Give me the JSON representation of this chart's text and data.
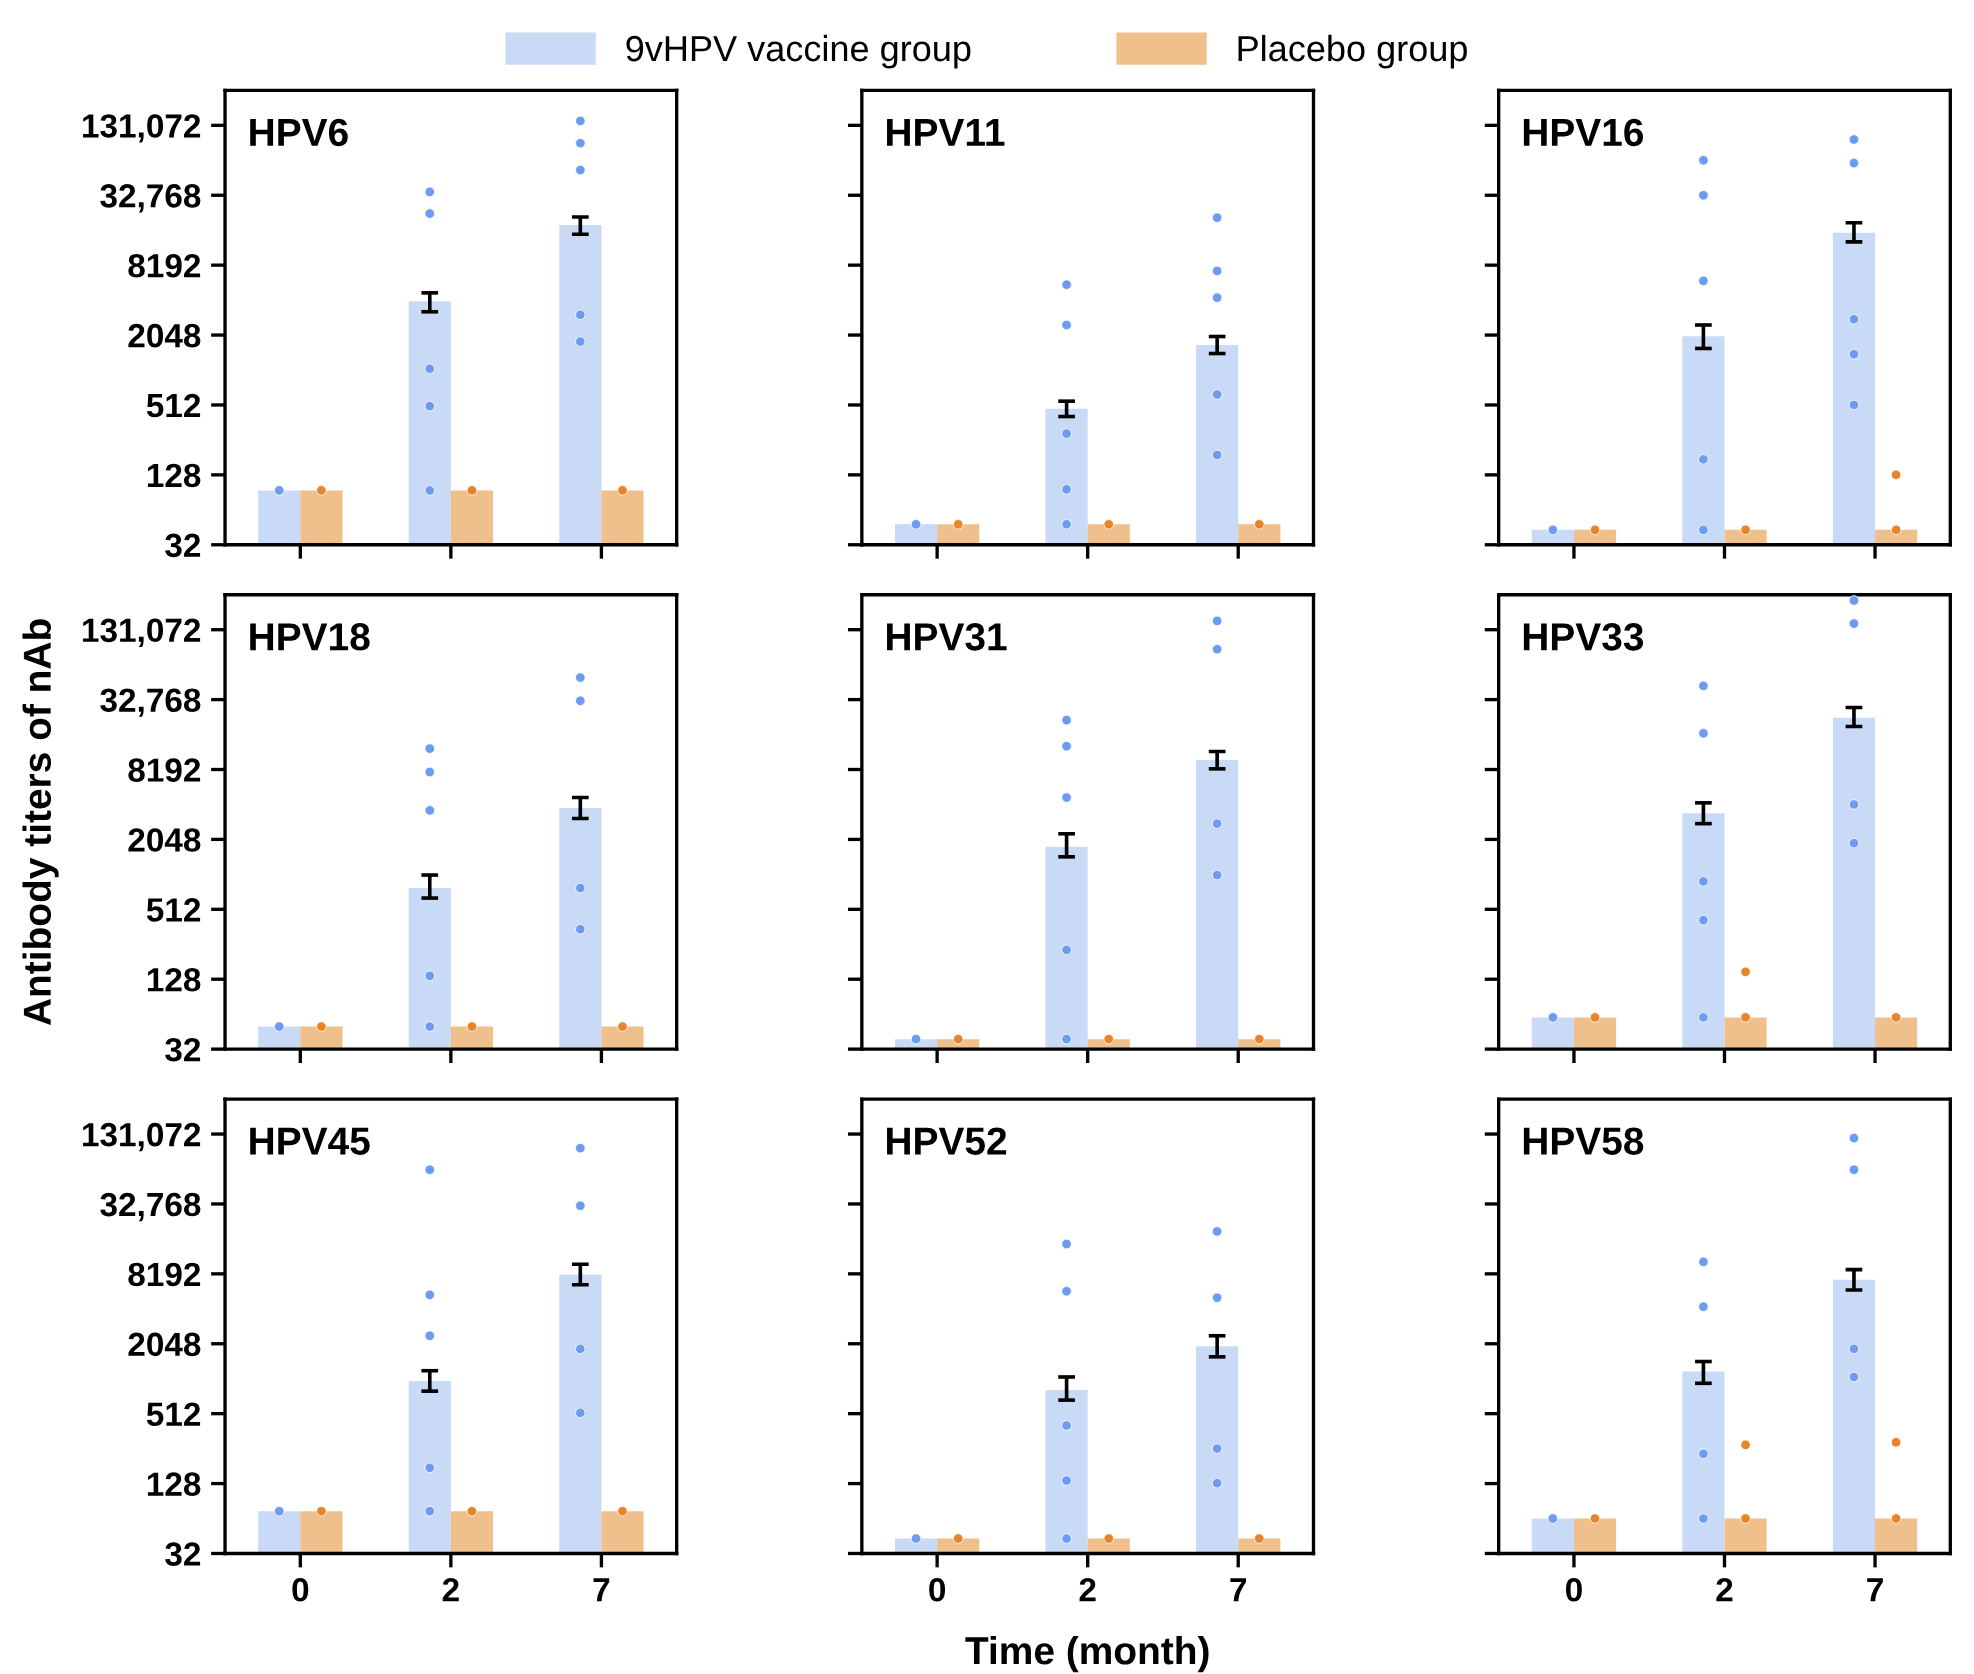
{
  "chart_data": [
    {
      "type": "bar",
      "title": "HPV6",
      "categories": [
        "0",
        "2",
        "7"
      ],
      "ylim": [
        32,
        262144
      ],
      "log": "y",
      "grid": false,
      "legend": "top",
      "tick_labels": "y",
      "yticks": [
        32,
        128,
        512,
        2048,
        8192,
        {
          "value": 32768,
          "label": "32,768"
        },
        {
          "value": 131072,
          "label": "131,072"
        }
      ],
      "series": [
        {
          "name": "9vHPV vaccine group",
          "color": "#c9daf6",
          "values": [
            94,
            4000,
            18200
          ],
          "errors": [
            null,
            [
              3250,
              4730
            ],
            [
              15100,
              21300
            ]
          ]
        },
        {
          "name": "Placebo group",
          "color": "#f0c08c",
          "values": [
            94,
            94,
            94
          ]
        },
        {
          "type": "scatter",
          "color": "#6d9bf1",
          "marker": "circle",
          "x": [
            "0",
            "2",
            "2",
            "2",
            "2",
            "2",
            "7",
            "7",
            "7",
            "7",
            "7"
          ],
          "values": [
            94,
            94,
            500,
            1050,
            22800,
            35000,
            1800,
            3060,
            54000,
            92000,
            143000
          ]
        },
        {
          "type": "scatter",
          "color": "#e8842a",
          "marker": "circle",
          "x": [
            "0",
            "2",
            "7"
          ],
          "values": [
            94,
            94,
            94
          ]
        }
      ]
    },
    {
      "type": "bar",
      "title": "HPV11",
      "categories": [
        "0",
        "2",
        "7"
      ],
      "ylim": [
        32,
        262144
      ],
      "log": "y",
      "grid": false,
      "tick_labels": false,
      "yticks": [
        {
          "value": 32,
          "label": null
        },
        {
          "value": 128,
          "label": null
        },
        {
          "value": 512,
          "label": null
        },
        {
          "value": 2048,
          "label": null
        },
        {
          "value": 8192,
          "label": null
        },
        {
          "value": 32768,
          "label": null
        },
        {
          "value": 131072,
          "label": null
        }
      ],
      "series": [
        {
          "color": "#c9daf6",
          "values": [
            48,
            474,
            1680
          ],
          "errors": [
            null,
            [
              407,
              552
            ],
            [
              1420,
              1990
            ]
          ]
        },
        {
          "color": "#f0c08c",
          "values": [
            48,
            48,
            48
          ]
        },
        {
          "type": "scatter",
          "color": "#6d9bf1",
          "marker": "circle",
          "x": [
            "0",
            "2",
            "2",
            "2",
            "2",
            "2",
            "7",
            "7",
            "7",
            "7",
            "7"
          ],
          "values": [
            48,
            48,
            96,
            290,
            2500,
            5560,
            190,
            630,
            4300,
            7300,
            21000
          ]
        },
        {
          "type": "scatter",
          "color": "#e8842a",
          "marker": "circle",
          "x": [
            "0",
            "2",
            "7"
          ],
          "values": [
            48,
            48,
            48
          ]
        }
      ]
    },
    {
      "type": "bar",
      "title": "HPV16",
      "categories": [
        "0",
        "2",
        "7"
      ],
      "ylim": [
        32,
        262144
      ],
      "log": "y",
      "grid": false,
      "tick_labels": false,
      "yticks": [
        {
          "value": 32,
          "label": null
        },
        {
          "value": 128,
          "label": null
        },
        {
          "value": 512,
          "label": null
        },
        {
          "value": 2048,
          "label": null
        },
        {
          "value": 8192,
          "label": null
        },
        {
          "value": 32768,
          "label": null
        },
        {
          "value": 131072,
          "label": null
        }
      ],
      "series": [
        {
          "color": "#c9daf6",
          "values": [
            43,
            2000,
            15600
          ],
          "errors": [
            null,
            [
              1570,
              2500
            ],
            [
              13000,
              19000
            ]
          ]
        },
        {
          "color": "#f0c08c",
          "values": [
            43,
            43,
            43
          ]
        },
        {
          "type": "scatter",
          "color": "#6d9bf1",
          "marker": "circle",
          "x": [
            "0",
            "2",
            "2",
            "2",
            "2",
            "2",
            "7",
            "7",
            "7",
            "7",
            "7"
          ],
          "values": [
            43,
            43,
            174,
            6000,
            32768,
            65536,
            512,
            1400,
            2800,
            62000,
            99000
          ]
        },
        {
          "type": "scatter",
          "color": "#e8842a",
          "marker": "circle",
          "x": [
            "0",
            "2",
            "7",
            "7"
          ],
          "values": [
            43,
            43,
            43,
            128
          ]
        }
      ]
    },
    {
      "type": "bar",
      "title": "HPV18",
      "ylabel": "Antibody titers of nAb",
      "categories": [
        "0",
        "2",
        "7"
      ],
      "ylim": [
        32,
        262144
      ],
      "log": "y",
      "grid": false,
      "tick_labels": "y",
      "yticks": [
        32,
        128,
        512,
        2048,
        8192,
        {
          "value": 32768,
          "label": "32,768"
        },
        {
          "value": 131072,
          "label": "131,072"
        }
      ],
      "series": [
        {
          "color": "#c9daf6",
          "values": [
            50,
            780,
            3820
          ],
          "errors": [
            null,
            [
              640,
              1010
            ],
            [
              3100,
              4700
            ]
          ]
        },
        {
          "color": "#f0c08c",
          "values": [
            50,
            50,
            50
          ]
        },
        {
          "type": "scatter",
          "color": "#6d9bf1",
          "marker": "circle",
          "x": [
            "0",
            "2",
            "2",
            "2",
            "2",
            "2",
            "7",
            "7",
            "7",
            "7"
          ],
          "values": [
            50,
            50,
            137,
            3640,
            7800,
            12400,
            345,
            780,
            32000,
            50700
          ]
        },
        {
          "type": "scatter",
          "color": "#e8842a",
          "marker": "circle",
          "x": [
            "0",
            "2",
            "7"
          ],
          "values": [
            50,
            50,
            50
          ]
        }
      ]
    },
    {
      "type": "bar",
      "title": "HPV31",
      "categories": [
        "0",
        "2",
        "7"
      ],
      "ylim": [
        32,
        262144
      ],
      "log": "y",
      "grid": false,
      "tick_labels": false,
      "yticks": [
        {
          "value": 32,
          "label": null
        },
        {
          "value": 128,
          "label": null
        },
        {
          "value": 512,
          "label": null
        },
        {
          "value": 2048,
          "label": null
        },
        {
          "value": 8192,
          "label": null
        },
        {
          "value": 32768,
          "label": null
        },
        {
          "value": 131072,
          "label": null
        }
      ],
      "series": [
        {
          "color": "#c9daf6",
          "values": [
            39,
            1770,
            9900
          ],
          "errors": [
            null,
            [
              1450,
              2290
            ],
            [
              8300,
              11700
            ]
          ]
        },
        {
          "color": "#f0c08c",
          "values": [
            39,
            39,
            39
          ]
        },
        {
          "type": "scatter",
          "color": "#6d9bf1",
          "marker": "circle",
          "x": [
            "0",
            "2",
            "2",
            "2",
            "2",
            "2",
            "7",
            "7",
            "7",
            "7"
          ],
          "values": [
            39,
            39,
            229,
            4700,
            13000,
            21800,
            1010,
            2800,
            89000,
            156000
          ]
        },
        {
          "type": "scatter",
          "color": "#e8842a",
          "marker": "circle",
          "x": [
            "0",
            "2",
            "7"
          ],
          "values": [
            39,
            39,
            39
          ]
        }
      ]
    },
    {
      "type": "bar",
      "title": "HPV33",
      "categories": [
        "0",
        "2",
        "7"
      ],
      "ylim": [
        32,
        262144
      ],
      "log": "y",
      "grid": false,
      "tick_labels": false,
      "yticks": [
        {
          "value": 32,
          "label": null
        },
        {
          "value": 128,
          "label": null
        },
        {
          "value": 512,
          "label": null
        },
        {
          "value": 2048,
          "label": null
        },
        {
          "value": 8192,
          "label": null
        },
        {
          "value": 32768,
          "label": null
        },
        {
          "value": 131072,
          "label": null
        }
      ],
      "series": [
        {
          "color": "#c9daf6",
          "values": [
            60,
            3440,
            22900
          ],
          "errors": [
            null,
            [
              2800,
              4230
            ],
            [
              19200,
              28000
            ]
          ]
        },
        {
          "color": "#f0c08c",
          "values": [
            60,
            60,
            60
          ]
        },
        {
          "type": "scatter",
          "color": "#6d9bf1",
          "marker": "circle",
          "x": [
            "0",
            "2",
            "2",
            "2",
            "2",
            "2",
            "7",
            "7",
            "7",
            "7"
          ],
          "values": [
            60,
            60,
            413,
            890,
            16800,
            43000,
            1900,
            4096,
            148000,
            234000
          ]
        },
        {
          "type": "scatter",
          "color": "#e8842a",
          "marker": "circle",
          "x": [
            "0",
            "2",
            "2",
            "7"
          ],
          "values": [
            60,
            60,
            148,
            60
          ]
        }
      ]
    },
    {
      "type": "bar",
      "title": "HPV45",
      "categories": [
        "0",
        "2",
        "7"
      ],
      "ylim": [
        32,
        262144
      ],
      "log": "y",
      "grid": false,
      "yticks": [
        32,
        128,
        512,
        2048,
        8192,
        {
          "value": 32768,
          "label": "32,768"
        },
        {
          "value": 131072,
          "label": "131,072"
        }
      ],
      "series": [
        {
          "color": "#c9daf6",
          "values": [
            74,
            980,
            8080
          ],
          "errors": [
            null,
            [
              800,
              1200
            ],
            [
              6600,
              9900
            ]
          ]
        },
        {
          "color": "#f0c08c",
          "values": [
            74,
            74,
            74
          ]
        },
        {
          "type": "scatter",
          "color": "#6d9bf1",
          "marker": "circle",
          "x": [
            "0",
            "2",
            "2",
            "2",
            "2",
            "2",
            "7",
            "7",
            "7",
            "7"
          ],
          "values": [
            74,
            74,
            175,
            2400,
            5400,
            64600,
            520,
            1850,
            31600,
            99000
          ]
        },
        {
          "type": "scatter",
          "color": "#e8842a",
          "marker": "circle",
          "x": [
            "0",
            "2",
            "7"
          ],
          "values": [
            74,
            74,
            74
          ]
        }
      ]
    },
    {
      "type": "bar",
      "title": "HPV52",
      "xlabel": "Time (month)",
      "categories": [
        "0",
        "2",
        "7"
      ],
      "ylim": [
        32,
        262144
      ],
      "log": "y",
      "grid": false,
      "tick_labels": "x",
      "yticks": [
        {
          "value": 32,
          "label": null
        },
        {
          "value": 128,
          "label": null
        },
        {
          "value": 512,
          "label": null
        },
        {
          "value": 2048,
          "label": null
        },
        {
          "value": 8192,
          "label": null
        },
        {
          "value": 32768,
          "label": null
        },
        {
          "value": 131072,
          "label": null
        }
      ],
      "series": [
        {
          "color": "#c9daf6",
          "values": [
            43,
            820,
            1950
          ],
          "errors": [
            null,
            [
              670,
              1060
            ],
            [
              1580,
              2400
            ]
          ]
        },
        {
          "color": "#f0c08c",
          "values": [
            43,
            43,
            43
          ]
        },
        {
          "type": "scatter",
          "color": "#6d9bf1",
          "marker": "circle",
          "x": [
            "0",
            "2",
            "2",
            "2",
            "2",
            "2",
            "7",
            "7",
            "7",
            "7"
          ],
          "values": [
            43,
            43,
            136,
            405,
            5800,
            14800,
            129,
            256,
            5100,
            19000
          ]
        },
        {
          "type": "scatter",
          "color": "#e8842a",
          "marker": "circle",
          "x": [
            "0",
            "2",
            "7"
          ],
          "values": [
            43,
            43,
            43
          ]
        }
      ]
    },
    {
      "type": "bar",
      "title": "HPV58",
      "categories": [
        "0",
        "2",
        "7"
      ],
      "ylim": [
        32,
        262144
      ],
      "log": "y",
      "grid": false,
      "tick_labels": "x",
      "yticks": [
        {
          "value": 32,
          "label": null
        },
        {
          "value": 128,
          "label": null
        },
        {
          "value": 512,
          "label": null
        },
        {
          "value": 2048,
          "label": null
        },
        {
          "value": 8192,
          "label": null
        },
        {
          "value": 32768,
          "label": null
        },
        {
          "value": 131072,
          "label": null
        }
      ],
      "series": [
        {
          "color": "#c9daf6",
          "values": [
            64,
            1180,
            7280
          ],
          "errors": [
            null,
            [
              935,
              1440
            ],
            [
              5950,
              8900
            ]
          ]
        },
        {
          "color": "#f0c08c",
          "values": [
            64,
            64,
            64
          ]
        },
        {
          "type": "scatter",
          "color": "#6d9bf1",
          "marker": "circle",
          "x": [
            "0",
            "2",
            "2",
            "2",
            "2",
            "7",
            "7",
            "7",
            "7"
          ],
          "values": [
            64,
            64,
            231,
            4270,
            10400,
            1060,
            1850,
            64600,
            121000
          ]
        },
        {
          "type": "scatter",
          "color": "#e8842a",
          "marker": "circle",
          "x": [
            "0",
            "2",
            "2",
            "7",
            "7"
          ],
          "values": [
            64,
            64,
            276,
            64,
            290
          ]
        }
      ]
    }
  ]
}
